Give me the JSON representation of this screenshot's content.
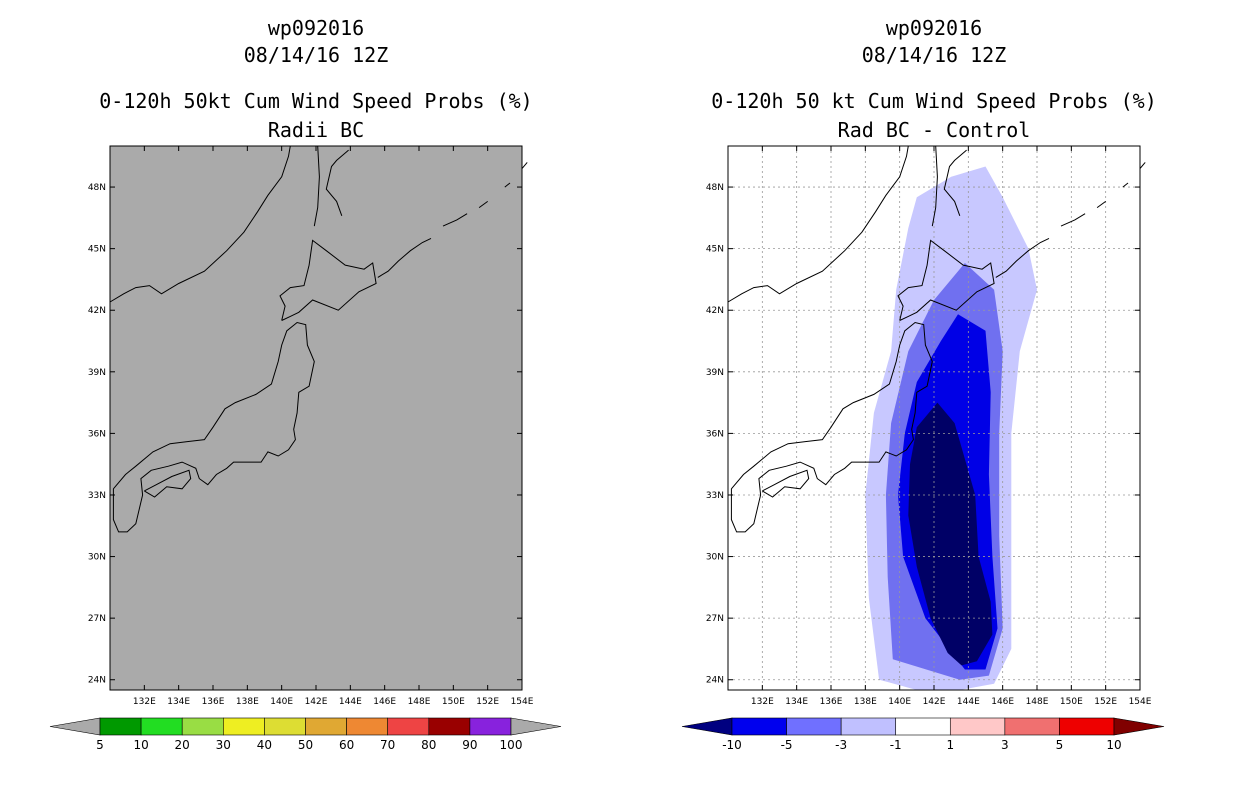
{
  "chart_data": [
    {
      "type": "map",
      "storm_id": "wp092016",
      "datetime": "08/14/16 12Z",
      "title": "0-120h 50kt Cum Wind Speed Probs (%)",
      "subtitle": "Radii BC",
      "background_color": "#aaaaaa",
      "lon_range": [
        130,
        154
      ],
      "lat_range": [
        23,
        50
      ],
      "lat_ticks": [
        "48N",
        "45N",
        "42N",
        "39N",
        "36N",
        "33N",
        "30N",
        "27N",
        "24N"
      ],
      "lat_values": [
        48,
        45,
        42,
        39,
        36,
        33,
        30,
        27,
        24
      ],
      "lon_ticks": [
        "132E",
        "134E",
        "136E",
        "138E",
        "140E",
        "142E",
        "144E",
        "146E",
        "148E",
        "150E",
        "152E",
        "154E"
      ],
      "lon_values": [
        132,
        134,
        136,
        138,
        140,
        142,
        144,
        146,
        148,
        150,
        152,
        154
      ],
      "grid": false,
      "colorbar": {
        "labels": [
          "5",
          "10",
          "20",
          "30",
          "40",
          "50",
          "60",
          "70",
          "80",
          "90",
          "100"
        ],
        "colors": [
          "#009900",
          "#22dd22",
          "#99dd44",
          "#eeee22",
          "#dddd33",
          "#e0a833",
          "#ee8833",
          "#ee4444",
          "#990000",
          "#8822dd"
        ],
        "below_color": "#aaaaaa",
        "above_color": "#aaaaaa"
      }
    },
    {
      "type": "map",
      "storm_id": "wp092016",
      "datetime": "08/14/16 12Z",
      "title": "0-120h 50 kt Cum Wind Speed Probs (%)",
      "subtitle": "Rad BC - Control",
      "background_color": "#ffffff",
      "lon_range": [
        130,
        154
      ],
      "lat_range": [
        23,
        50
      ],
      "lat_ticks": [
        "48N",
        "45N",
        "42N",
        "39N",
        "36N",
        "33N",
        "30N",
        "27N",
        "24N"
      ],
      "lat_values": [
        48,
        45,
        42,
        39,
        36,
        33,
        30,
        27,
        24
      ],
      "lon_ticks": [
        "132E",
        "134E",
        "136E",
        "138E",
        "140E",
        "142E",
        "144E",
        "146E",
        "148E",
        "150E",
        "152E",
        "154E"
      ],
      "lon_values": [
        132,
        134,
        136,
        138,
        140,
        142,
        144,
        146,
        148,
        150,
        152,
        154
      ],
      "grid": true,
      "contour_levels": [
        -10,
        -5,
        -3,
        -1,
        1,
        3,
        5,
        10
      ],
      "colorbar": {
        "labels": [
          "-10",
          "-5",
          "-3",
          "-1",
          "1",
          "3",
          "5",
          "10"
        ],
        "colors": [
          "#0000ee",
          "#7070ff",
          "#c0c0ff",
          "#ffffff",
          "#ffc8c8",
          "#f07070",
          "#ee0000"
        ],
        "below_color": "#000080",
        "above_color": "#800000"
      },
      "shaded_regions": [
        {
          "level": "-1 to -3",
          "color": "#c8c8ff",
          "path": [
            [
              138.8,
              24
            ],
            [
              138.2,
              28
            ],
            [
              138.0,
              33
            ],
            [
              138.5,
              37
            ],
            [
              139.5,
              40
            ],
            [
              139.8,
              43
            ],
            [
              140.5,
              46
            ],
            [
              141.0,
              47.5
            ],
            [
              143.0,
              48.5
            ],
            [
              145.0,
              49
            ],
            [
              146.0,
              47.5
            ],
            [
              147.5,
              45
            ],
            [
              148.0,
              43
            ],
            [
              147.0,
              40
            ],
            [
              146.5,
              36
            ],
            [
              146.5,
              30
            ],
            [
              146.5,
              25.5
            ],
            [
              145.5,
              23.8
            ],
            [
              143.5,
              23.5
            ],
            [
              141.0,
              23.5
            ]
          ]
        },
        {
          "level": "-3 to -5",
          "color": "#7070f0",
          "path": [
            [
              139.6,
              25
            ],
            [
              139.3,
              29
            ],
            [
              139.2,
              33
            ],
            [
              139.5,
              36.5
            ],
            [
              140.5,
              40
            ],
            [
              142.0,
              42.5
            ],
            [
              143.8,
              44.3
            ],
            [
              145.5,
              43
            ],
            [
              146.0,
              40
            ],
            [
              145.8,
              36
            ],
            [
              145.8,
              31
            ],
            [
              146.0,
              26.5
            ],
            [
              145.2,
              24.2
            ],
            [
              143.5,
              24
            ]
          ]
        },
        {
          "level": "-5 to -10",
          "color": "#0000e6",
          "path": [
            [
              140.2,
              30
            ],
            [
              139.9,
              33
            ],
            [
              140.3,
              36
            ],
            [
              141.0,
              38.5
            ],
            [
              142.4,
              40.5
            ],
            [
              143.4,
              41.8
            ],
            [
              145.0,
              41.0
            ],
            [
              145.3,
              38
            ],
            [
              145.2,
              34
            ],
            [
              145.4,
              30
            ],
            [
              145.7,
              26.5
            ],
            [
              145.0,
              24.5
            ],
            [
              143.8,
              24.5
            ],
            [
              141.5,
              27
            ]
          ]
        },
        {
          "level": "< -10",
          "color": "#000066",
          "path": [
            [
              142.8,
              25.3
            ],
            [
              141.8,
              27
            ],
            [
              141.0,
              29.5
            ],
            [
              140.5,
              32
            ],
            [
              140.6,
              34.5
            ],
            [
              141.0,
              36.3
            ],
            [
              142.2,
              37.5
            ],
            [
              143.2,
              36.5
            ],
            [
              144.4,
              33
            ],
            [
              144.6,
              30
            ],
            [
              145.3,
              27.8
            ],
            [
              145.4,
              26.2
            ],
            [
              144.5,
              24.9
            ],
            [
              143.6,
              24.7
            ]
          ]
        }
      ]
    }
  ]
}
